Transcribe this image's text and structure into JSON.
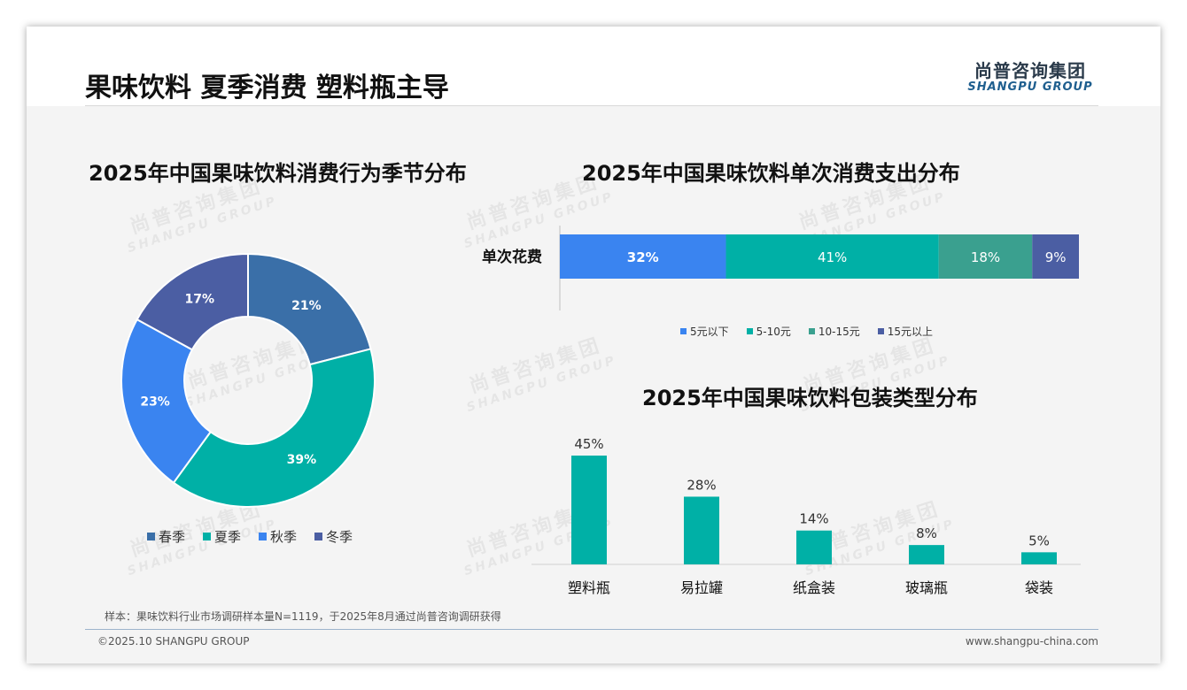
{
  "page": {
    "title": "果味饮料 夏季消费 塑料瓶主导",
    "logo": {
      "cn": "尚普咨询集团",
      "en": "SHANGPU GROUP"
    },
    "watermark": {
      "cn": "尚普咨询集团",
      "en": "SHANGPU GROUP"
    },
    "sample_note": "样本：果味饮料行业市场调研样本量N=1119，于2025年8月通过尚普咨询调研获得",
    "footer_left": "©2025.10 SHANGPU GROUP",
    "footer_right": "www.shangpu-china.com"
  },
  "chart_data": [
    {
      "type": "pie",
      "title": "2025年中国果味饮料消费行为季节分布",
      "labels": [
        "春季",
        "夏季",
        "秋季",
        "冬季"
      ],
      "values": [
        21,
        39,
        23,
        17
      ],
      "value_labels": [
        "21%",
        "39%",
        "23%",
        "17%"
      ],
      "colors": [
        "#3a6fa8",
        "#00b0a6",
        "#3a84f0",
        "#4b5ea3"
      ],
      "donut": true,
      "legend_position": "bottom"
    },
    {
      "type": "bar",
      "orientation": "horizontal",
      "stacked": true,
      "title": "2025年中国果味饮料单次消费支出分布",
      "categories": [
        "单次花费"
      ],
      "series": [
        {
          "name": "5元以下",
          "values": [
            32
          ],
          "label": "32%",
          "color": "#3a84f0"
        },
        {
          "name": "5-10元",
          "values": [
            41
          ],
          "label": "41%",
          "color": "#00b0a6"
        },
        {
          "name": "10-15元",
          "values": [
            18
          ],
          "label": "18%",
          "color": "#3aa08f"
        },
        {
          "name": "15元以上",
          "values": [
            9
          ],
          "label": "9%",
          "color": "#4b5ea3"
        }
      ],
      "legend_position": "bottom"
    },
    {
      "type": "bar",
      "title": "2025年中国果味饮料包装类型分布",
      "categories": [
        "塑料瓶",
        "易拉罐",
        "纸盒装",
        "玻璃瓶",
        "袋装"
      ],
      "values": [
        45,
        28,
        14,
        8,
        5
      ],
      "value_labels": [
        "45%",
        "28%",
        "14%",
        "8%",
        "5%"
      ],
      "color": "#00b0a6",
      "ylim": [
        0,
        45
      ]
    }
  ]
}
